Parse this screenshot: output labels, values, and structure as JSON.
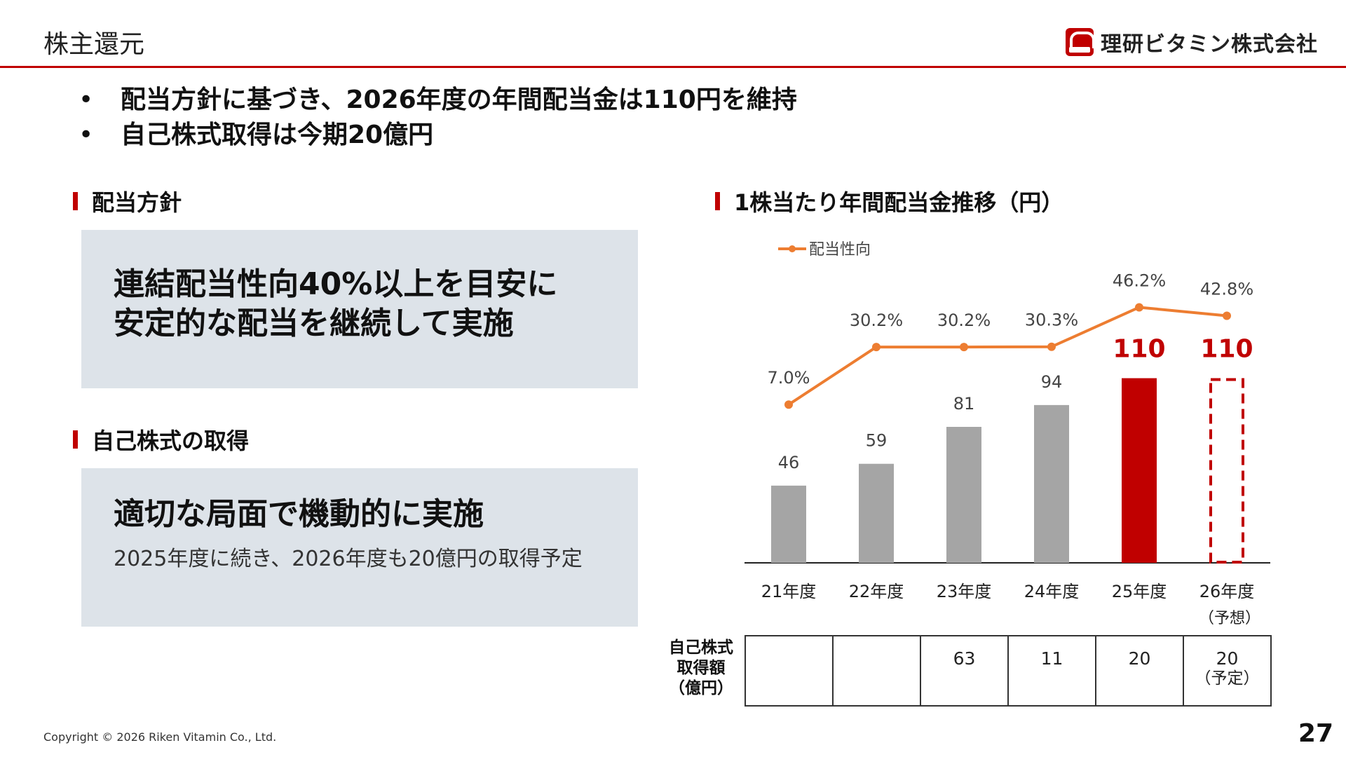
{
  "header": {
    "title": "株主還元",
    "company": "理研ビタミン株式会社"
  },
  "bullets": [
    "配当方針に基づき、2026年度の年間配当金は110円を維持",
    "自己株式取得は今期20億円"
  ],
  "dividend_policy": {
    "heading": "配当方針",
    "lines": [
      "連結配当性向40%以上を目安に",
      "安定的な配当を継続して実施"
    ]
  },
  "buyback": {
    "heading": "自己株式の取得",
    "main": "適切な局面で機動的に実施",
    "sub": "2025年度に続き、2026年度も20億円の取得予定"
  },
  "chart_data": {
    "type": "bar",
    "title": "1株当たり年間配当金推移（円）",
    "categories": [
      "21年度",
      "22年度",
      "23年度",
      "24年度",
      "25年度",
      "26年度"
    ],
    "category_notes": [
      "",
      "",
      "",
      "",
      "",
      "（予想）"
    ],
    "series": [
      {
        "values": [
          46,
          59,
          81,
          94,
          110,
          110
        ],
        "value_labels": [
          "46",
          "59",
          "81",
          "94",
          "110",
          "110"
        ]
      },
      {
        "name": "配当性向",
        "type": "line",
        "values": [
          7.0,
          30.2,
          30.2,
          30.3,
          46.2,
          42.8
        ],
        "value_labels": [
          "7.0%",
          "30.2%",
          "30.2%",
          "30.3%",
          "46.2%",
          "42.8%"
        ]
      }
    ],
    "highlight_color": "#c00000",
    "bar_color": "#a5a5a5",
    "line_color": "#ed7d31",
    "last_bar_style": "dashed-outline",
    "legend": "top-left"
  },
  "buyback_table": {
    "label_lines": [
      "自己株式",
      "取得額",
      "（億円）"
    ],
    "values": [
      "",
      "",
      "63",
      "11",
      "20",
      "20"
    ],
    "notes": [
      "",
      "",
      "",
      "",
      "",
      "（予定）"
    ]
  },
  "footer": {
    "copyright": "Copyright © 2026 Riken Vitamin Co., Ltd.",
    "page": "27"
  }
}
